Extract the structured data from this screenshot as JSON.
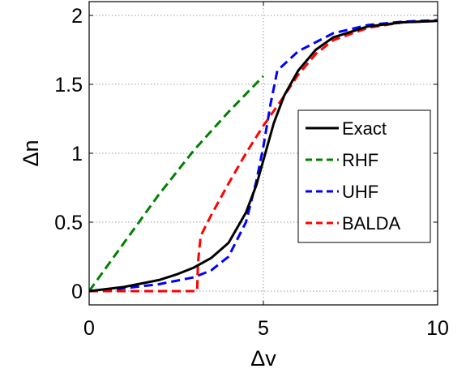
{
  "chart_data": {
    "type": "line",
    "xlabel": "Δv",
    "ylabel": "Δn",
    "xlim": [
      0,
      10
    ],
    "ylim": [
      -0.1,
      2.1
    ],
    "xticks": [
      0,
      5,
      10
    ],
    "xtick_labels": [
      "0",
      "5",
      "10"
    ],
    "yticks": [
      0,
      0.5,
      1,
      1.5,
      2
    ],
    "ytick_labels": [
      "0",
      "0.5",
      "1",
      "1.5",
      "2"
    ],
    "grid": true,
    "legend_position": "right",
    "series": [
      {
        "name": "Exact",
        "color": "#000000",
        "style": "solid",
        "x": [
          0,
          1,
          2,
          2.5,
          3,
          3.5,
          4,
          4.5,
          4.8,
          5,
          5.3,
          5.6,
          6,
          6.5,
          7,
          8,
          9,
          10
        ],
        "y": [
          0,
          0.03,
          0.08,
          0.12,
          0.17,
          0.24,
          0.35,
          0.57,
          0.77,
          0.95,
          1.22,
          1.42,
          1.6,
          1.75,
          1.84,
          1.92,
          1.95,
          1.96
        ]
      },
      {
        "name": "RHF",
        "color": "#007f00",
        "style": "dashed",
        "x": [
          0,
          1,
          2,
          3,
          4,
          4.5,
          5
        ],
        "y": [
          0,
          0.35,
          0.7,
          1.02,
          1.3,
          1.43,
          1.56
        ]
      },
      {
        "name": "UHF",
        "color": "#0000ff",
        "style": "dashed",
        "x": [
          0,
          1,
          2,
          3,
          3.5,
          4,
          4.5,
          4.8,
          5,
          5.2,
          5.4,
          6,
          7,
          8,
          9,
          10
        ],
        "y": [
          0,
          0.02,
          0.05,
          0.1,
          0.15,
          0.25,
          0.5,
          0.8,
          1.05,
          1.35,
          1.6,
          1.74,
          1.87,
          1.93,
          1.955,
          1.965
        ]
      },
      {
        "name": "BALDA",
        "color": "#ff0000",
        "style": "dashed",
        "x": [
          0,
          1,
          2,
          3,
          3.1,
          3.12,
          3.2,
          3.5,
          4,
          4.5,
          5,
          5.5,
          6,
          6.5,
          7,
          8,
          9,
          10
        ],
        "y": [
          0,
          0,
          0,
          0,
          0,
          0.2,
          0.4,
          0.55,
          0.78,
          1.0,
          1.2,
          1.38,
          1.57,
          1.72,
          1.82,
          1.91,
          1.95,
          1.96
        ]
      }
    ]
  }
}
